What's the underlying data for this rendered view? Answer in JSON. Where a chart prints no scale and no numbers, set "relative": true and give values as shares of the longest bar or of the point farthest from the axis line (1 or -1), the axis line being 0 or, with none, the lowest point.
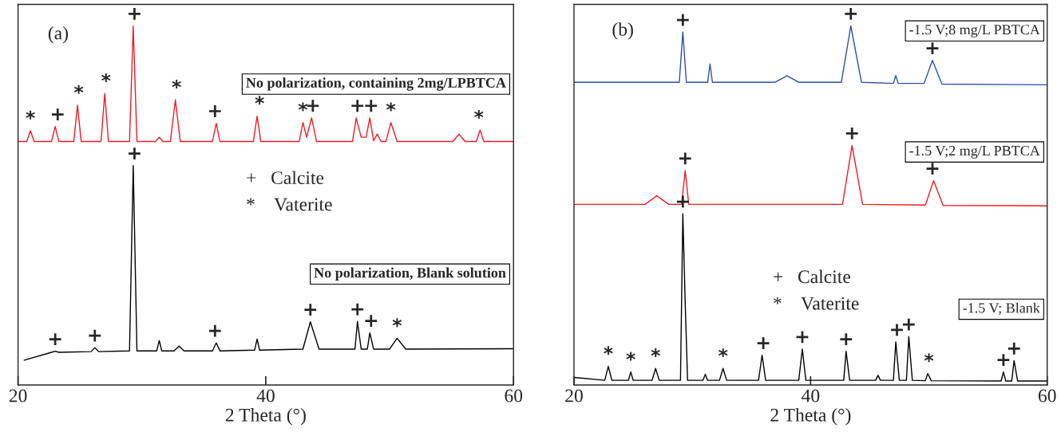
{
  "chart_data": [
    {
      "type": "line",
      "relative": true,
      "xlabel": "2 Theta (°)",
      "xlim": [
        20,
        60
      ],
      "xticks": [
        20,
        40,
        60
      ],
      "tick_labels": "x",
      "grid": false,
      "marker": "none",
      "line_style": "solid",
      "series": [
        {
          "name": "No polarization, containing 2mg/LPBTCA",
          "color": "#ee1c25",
          "x": [
            20,
            20.7,
            21.0,
            21.3,
            22.7,
            23.0,
            23.3,
            24.5,
            24.8,
            25.1,
            26.7,
            27.0,
            27.3,
            29.0,
            29.3,
            29.6,
            31.1,
            31.4,
            31.7,
            32.3,
            32.7,
            33.1,
            35.7,
            36.0,
            36.3,
            39.0,
            39.3,
            39.6,
            42.7,
            43.0,
            43.3,
            43.7,
            44.1,
            47.0,
            47.3,
            47.7,
            48.1,
            48.4,
            48.7,
            49.0,
            49.3,
            49.7,
            50.1,
            50.6,
            55.1,
            55.6,
            56.1,
            57.0,
            57.3,
            57.6,
            60
          ],
          "values": [
            0.678,
            0.678,
            0.708,
            0.678,
            0.678,
            0.72,
            0.678,
            0.678,
            0.779,
            0.678,
            0.678,
            0.812,
            0.678,
            0.678,
            1.0,
            0.678,
            0.678,
            0.69,
            0.678,
            0.678,
            0.794,
            0.678,
            0.678,
            0.729,
            0.678,
            0.678,
            0.749,
            0.678,
            0.678,
            0.731,
            0.69,
            0.744,
            0.678,
            0.678,
            0.744,
            0.69,
            0.69,
            0.744,
            0.68,
            0.699,
            0.678,
            0.678,
            0.731,
            0.678,
            0.678,
            0.698,
            0.678,
            0.678,
            0.71,
            0.678,
            0.678
          ]
        },
        {
          "name": "No polarization, Blank solution",
          "color": "#000000",
          "x": [
            20.5,
            22.7,
            23.0,
            23.3,
            25.9,
            26.2,
            26.5,
            29.0,
            29.3,
            29.6,
            31.2,
            31.4,
            31.6,
            32.6,
            33.0,
            33.4,
            35.7,
            36.0,
            36.3,
            39.1,
            39.3,
            39.5,
            43.0,
            43.6,
            44.3,
            47.2,
            47.4,
            47.7,
            48.2,
            48.4,
            48.7,
            50.0,
            50.6,
            51.3,
            60
          ],
          "values": [
            0.069,
            0.091,
            0.094,
            0.091,
            0.093,
            0.104,
            0.093,
            0.095,
            0.611,
            0.095,
            0.095,
            0.124,
            0.095,
            0.095,
            0.108,
            0.095,
            0.095,
            0.117,
            0.095,
            0.097,
            0.128,
            0.097,
            0.1,
            0.176,
            0.1,
            0.1,
            0.177,
            0.1,
            0.1,
            0.145,
            0.1,
            0.1,
            0.13,
            0.1,
            0.101
          ]
        }
      ],
      "annotations": [
        "(a)",
        "+   Calcite",
        "*    Vaterite",
        {
          "text": "*",
          "x": 21.0,
          "y": 0.708
        },
        {
          "text": "+",
          "x": 23.2,
          "y": 0.72
        },
        {
          "text": "*",
          "x": 24.9,
          "y": 0.779
        },
        {
          "text": "*",
          "x": 27.1,
          "y": 0.812
        },
        {
          "text": "+",
          "x": 29.4,
          "y": 1.0
        },
        {
          "text": "*",
          "x": 32.8,
          "y": 0.794
        },
        {
          "text": "+",
          "x": 35.9,
          "y": 0.729
        },
        {
          "text": "*",
          "x": 39.5,
          "y": 0.749
        },
        {
          "text": "*",
          "x": 43.0,
          "y": 0.731
        },
        {
          "text": "+",
          "x": 43.8,
          "y": 0.744
        },
        {
          "text": "+",
          "x": 47.4,
          "y": 0.744
        },
        {
          "text": "+",
          "x": 48.5,
          "y": 0.744
        },
        {
          "text": "*",
          "x": 50.1,
          "y": 0.731
        },
        {
          "text": "*",
          "x": 57.2,
          "y": 0.71
        },
        {
          "text": "+",
          "x": 23.0,
          "y": 0.094
        },
        {
          "text": "+",
          "x": 26.2,
          "y": 0.104
        },
        {
          "text": "+",
          "x": 29.4,
          "y": 0.611
        },
        {
          "text": "+",
          "x": 35.9,
          "y": 0.117
        },
        {
          "text": "+",
          "x": 43.6,
          "y": 0.176
        },
        {
          "text": "+",
          "x": 47.4,
          "y": 0.177
        },
        {
          "text": "+",
          "x": 48.5,
          "y": 0.145
        },
        {
          "text": "*",
          "x": 50.6,
          "y": 0.13
        }
      ]
    },
    {
      "type": "line",
      "relative": true,
      "xlabel": "2 Theta (°)",
      "xlim": [
        20,
        60
      ],
      "xticks": [
        20,
        40,
        60
      ],
      "tick_labels": "x",
      "grid": false,
      "marker": "none",
      "line_style": "solid",
      "series": [
        {
          "name": "-1.5 V;8 mg/L PBTCA",
          "color": "#2e4fa3",
          "x": [
            20,
            28.9,
            29.2,
            29.5,
            31.3,
            31.5,
            31.7,
            37,
            38,
            39,
            42.6,
            43.4,
            44.3,
            47.0,
            47.2,
            47.4,
            49.6,
            50.3,
            51.1,
            60
          ],
          "values": [
            0.843,
            0.843,
            0.983,
            0.843,
            0.843,
            0.894,
            0.843,
            0.843,
            0.861,
            0.843,
            0.843,
            1.0,
            0.843,
            0.84,
            0.862,
            0.84,
            0.84,
            0.904,
            0.838,
            0.836
          ]
        },
        {
          "name": "-1.5 V;2 mg/L PBTCA",
          "color": "#ee1c25",
          "x": [
            20,
            26,
            27,
            28,
            29.1,
            29.4,
            29.7,
            42.7,
            43.5,
            44.4,
            49.7,
            50.4,
            51.2,
            60
          ],
          "values": [
            0.503,
            0.503,
            0.527,
            0.503,
            0.503,
            0.597,
            0.503,
            0.503,
            0.667,
            0.503,
            0.501,
            0.569,
            0.5,
            0.499
          ]
        },
        {
          "name": "-1.5 V; Blank",
          "color": "#000000",
          "x": [
            20,
            22.6,
            22.9,
            23.2,
            24.6,
            24.8,
            25.0,
            26.6,
            26.9,
            27.2,
            29.0,
            29.2,
            29.4,
            29.6,
            30.9,
            31.1,
            31.3,
            32.3,
            32.6,
            32.9,
            35.6,
            35.9,
            36.2,
            39.0,
            39.3,
            39.6,
            42.8,
            43.0,
            43.3,
            45.5,
            45.7,
            45.9,
            47.0,
            47.2,
            47.5,
            48.1,
            48.3,
            48.6,
            49.7,
            49.9,
            50.2,
            56.1,
            56.3,
            56.5,
            57.0,
            57.2,
            57.5,
            60
          ],
          "values": [
            0.021,
            0.013,
            0.052,
            0.013,
            0.013,
            0.036,
            0.013,
            0.013,
            0.046,
            0.013,
            0.013,
            0.477,
            0.229,
            0.013,
            0.013,
            0.03,
            0.013,
            0.013,
            0.046,
            0.013,
            0.013,
            0.083,
            0.013,
            0.013,
            0.1,
            0.013,
            0.013,
            0.094,
            0.013,
            0.013,
            0.027,
            0.013,
            0.013,
            0.12,
            0.013,
            0.013,
            0.135,
            0.013,
            0.012,
            0.032,
            0.012,
            0.011,
            0.036,
            0.011,
            0.011,
            0.068,
            0.011,
            0.011
          ]
        }
      ],
      "annotations": [
        "(b)",
        "+   Calcite",
        "*    Vaterite",
        {
          "text": "+",
          "x": 29.2,
          "y": 0.983
        },
        {
          "text": "+",
          "x": 43.4,
          "y": 1.0
        },
        {
          "text": "+",
          "x": 50.3,
          "y": 0.904
        },
        {
          "text": "+",
          "x": 29.4,
          "y": 0.597
        },
        {
          "text": "+",
          "x": 43.5,
          "y": 0.667
        },
        {
          "text": "+",
          "x": 50.3,
          "y": 0.569
        },
        {
          "text": "*",
          "x": 22.9,
          "y": 0.052
        },
        {
          "text": "*",
          "x": 24.8,
          "y": 0.036
        },
        {
          "text": "*",
          "x": 26.9,
          "y": 0.046
        },
        {
          "text": "+",
          "x": 29.2,
          "y": 0.477
        },
        {
          "text": "*",
          "x": 32.6,
          "y": 0.046
        },
        {
          "text": "+",
          "x": 36.0,
          "y": 0.083
        },
        {
          "text": "+",
          "x": 39.3,
          "y": 0.1
        },
        {
          "text": "+",
          "x": 43.0,
          "y": 0.094
        },
        {
          "text": "+",
          "x": 47.3,
          "y": 0.12
        },
        {
          "text": "+",
          "x": 48.3,
          "y": 0.135
        },
        {
          "text": "*",
          "x": 50.0,
          "y": 0.032
        },
        {
          "text": "+",
          "x": 56.3,
          "y": 0.036
        },
        {
          "text": "+",
          "x": 57.2,
          "y": 0.068
        }
      ]
    }
  ]
}
